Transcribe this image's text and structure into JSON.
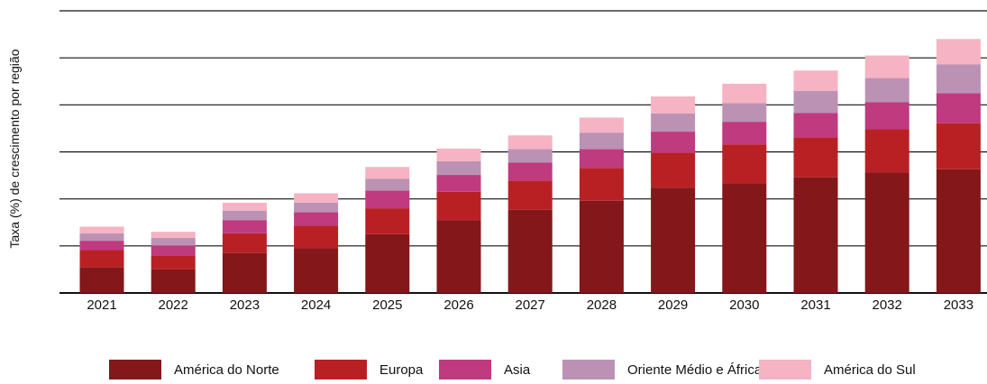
{
  "chart_data": {
    "type": "bar",
    "stacked": true,
    "title": "",
    "xlabel": "",
    "ylabel": "Taxa (%) de crescimento por região",
    "categories": [
      "2021",
      "2022",
      "2023",
      "2024",
      "2025",
      "2026",
      "2027",
      "2028",
      "2029",
      "2030",
      "2031",
      "2032",
      "2033"
    ],
    "ylim": [
      0,
      6
    ],
    "y_ticks_labeled": false,
    "grid": true,
    "legend_position": "bottom",
    "series": [
      {
        "name": "América do Norte",
        "color": "#83171a",
        "values": [
          0.55,
          0.5,
          0.85,
          0.95,
          1.25,
          1.55,
          1.77,
          1.96,
          2.24,
          2.33,
          2.46,
          2.56,
          2.63
        ]
      },
      {
        "name": "Europa",
        "color": "#b92024",
        "values": [
          0.36,
          0.3,
          0.42,
          0.48,
          0.55,
          0.6,
          0.62,
          0.7,
          0.74,
          0.83,
          0.85,
          0.92,
          0.98
        ]
      },
      {
        "name": "Asia",
        "color": "#bf3a7f",
        "values": [
          0.2,
          0.21,
          0.28,
          0.29,
          0.38,
          0.36,
          0.38,
          0.4,
          0.45,
          0.48,
          0.52,
          0.58,
          0.64
        ]
      },
      {
        "name": "Oriente Médio e África",
        "color": "#bb92b4",
        "values": [
          0.16,
          0.16,
          0.2,
          0.2,
          0.25,
          0.29,
          0.29,
          0.35,
          0.39,
          0.4,
          0.47,
          0.51,
          0.61
        ]
      },
      {
        "name": "América do Sul",
        "color": "#f6b3c3",
        "values": [
          0.14,
          0.13,
          0.17,
          0.2,
          0.25,
          0.27,
          0.29,
          0.32,
          0.36,
          0.41,
          0.43,
          0.48,
          0.54
        ]
      }
    ]
  }
}
